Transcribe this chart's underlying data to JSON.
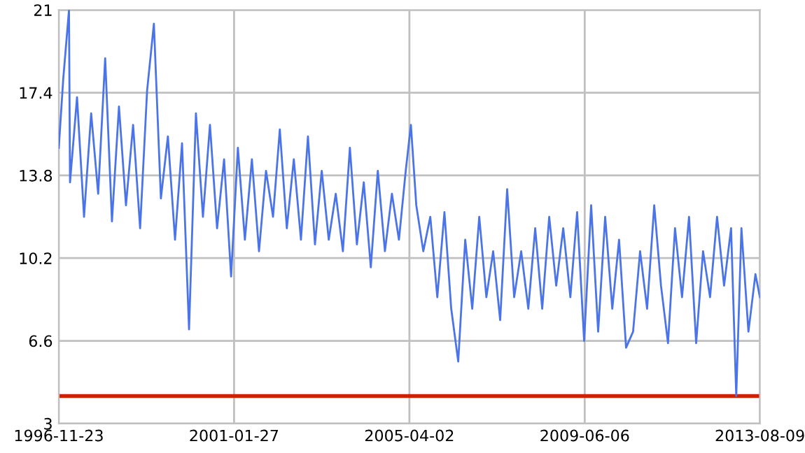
{
  "chart_data": {
    "type": "line",
    "x": [
      "1996-11-23",
      "1997-01",
      "1997-02-20",
      "1997-03",
      "1997-05",
      "1997-07",
      "1997-09",
      "1997-11",
      "1998-01",
      "1998-03",
      "1998-05",
      "1998-07",
      "1998-09",
      "1998-11",
      "1999-01",
      "1999-03",
      "1999-05",
      "1999-07",
      "1999-09",
      "1999-11",
      "2000-01",
      "2000-03",
      "2000-05",
      "2000-07",
      "2000-09",
      "2000-11",
      "2001-01",
      "2001-03",
      "2001-05",
      "2001-07",
      "2001-09",
      "2001-11",
      "2002-01",
      "2002-03",
      "2002-05",
      "2002-07",
      "2002-09",
      "2002-11",
      "2003-01",
      "2003-03",
      "2003-05",
      "2003-07",
      "2003-09",
      "2003-11",
      "2004-01",
      "2004-03",
      "2004-05",
      "2004-07",
      "2004-09",
      "2004-11",
      "2005-01",
      "2005-03",
      "2005-04-15",
      "2005-06",
      "2005-08",
      "2005-10",
      "2005-12",
      "2006-02",
      "2006-04",
      "2006-06",
      "2006-08",
      "2006-10",
      "2006-12",
      "2007-02",
      "2007-04",
      "2007-06",
      "2007-08",
      "2007-10",
      "2007-12",
      "2008-02",
      "2008-04",
      "2008-06",
      "2008-08",
      "2008-10",
      "2008-12",
      "2009-02",
      "2009-04",
      "2009-06",
      "2009-08",
      "2009-10",
      "2009-12",
      "2010-02",
      "2010-04",
      "2010-06",
      "2010-08",
      "2010-10",
      "2010-12",
      "2011-02",
      "2011-04",
      "2011-06",
      "2011-08",
      "2011-10",
      "2011-12",
      "2012-02",
      "2012-04",
      "2012-06",
      "2012-08",
      "2012-10",
      "2012-12",
      "2013-01-15",
      "2013-03",
      "2013-05",
      "2013-07",
      "2013-08-09"
    ],
    "series": [
      {
        "color": "#4a74e8",
        "values": [
          15.0,
          18.0,
          21.0,
          13.5,
          17.2,
          12.0,
          16.5,
          13.0,
          18.9,
          11.8,
          16.8,
          12.5,
          16.0,
          11.5,
          17.5,
          20.4,
          12.8,
          15.5,
          11.0,
          15.2,
          7.1,
          16.5,
          12.0,
          16.0,
          11.5,
          14.5,
          9.4,
          15.0,
          11.0,
          14.5,
          10.5,
          14.0,
          12.0,
          15.8,
          11.5,
          14.5,
          11.0,
          15.5,
          10.8,
          14.0,
          11.0,
          13.0,
          10.5,
          15.0,
          10.8,
          13.5,
          9.8,
          14.0,
          10.5,
          13.0,
          11.0,
          14.0,
          16.0,
          12.5,
          10.5,
          12.0,
          8.5,
          12.2,
          8.0,
          5.7,
          11.0,
          8.0,
          12.0,
          8.5,
          10.5,
          7.5,
          13.2,
          8.5,
          10.5,
          8.0,
          11.5,
          8.0,
          12.0,
          9.0,
          11.5,
          8.5,
          12.2,
          6.6,
          12.5,
          7.0,
          12.0,
          8.0,
          11.0,
          6.3,
          7.0,
          10.5,
          8.0,
          12.5,
          9.0,
          6.5,
          11.5,
          8.5,
          12.0,
          6.5,
          10.5,
          8.5,
          12.0,
          9.0,
          11.5,
          4.2,
          11.5,
          7.0,
          9.5,
          8.5
        ]
      }
    ],
    "xlim": [
      "1996-11-23",
      "2013-08-09"
    ],
    "xticks": [
      "1996-11-23",
      "2001-01-27",
      "2005-04-02",
      "2009-06-06",
      "2013-08-09"
    ],
    "ylim": [
      3,
      21
    ],
    "yticks": [
      3,
      6.6,
      10.2,
      13.8,
      17.4,
      21
    ],
    "ref_lines": [
      {
        "axis": "y",
        "value": 4.2,
        "color": "#cc2200"
      }
    ],
    "grid": true,
    "legend": false
  }
}
